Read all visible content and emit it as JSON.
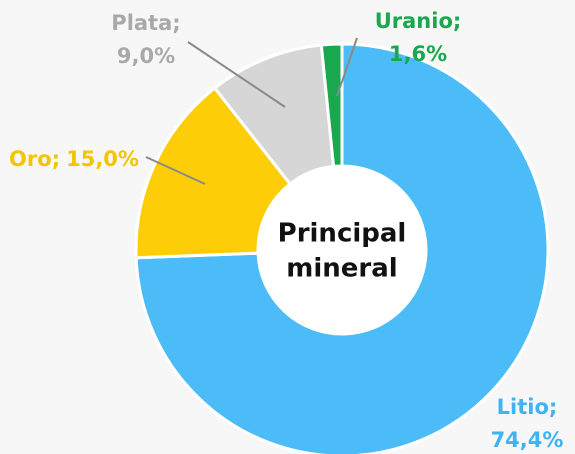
{
  "chart_data": {
    "type": "donut",
    "categories": [
      "Litio",
      "Oro",
      "Plata",
      "Uranio"
    ],
    "values": [
      74.4,
      15.0,
      9.0,
      1.6
    ],
    "value_labels": [
      "74,4%",
      "15,0%",
      "9,0%",
      "1,6%"
    ],
    "label_separator": ";",
    "colors": [
      "#4bbcf8",
      "#fdcd07",
      "#d6d6d6",
      "#1aa84f"
    ],
    "label_colors": [
      "#3fb4f3",
      "#f5c400",
      "#a9a9a9",
      "#1aa84f"
    ],
    "center_text": [
      "Principal",
      "mineral"
    ]
  }
}
